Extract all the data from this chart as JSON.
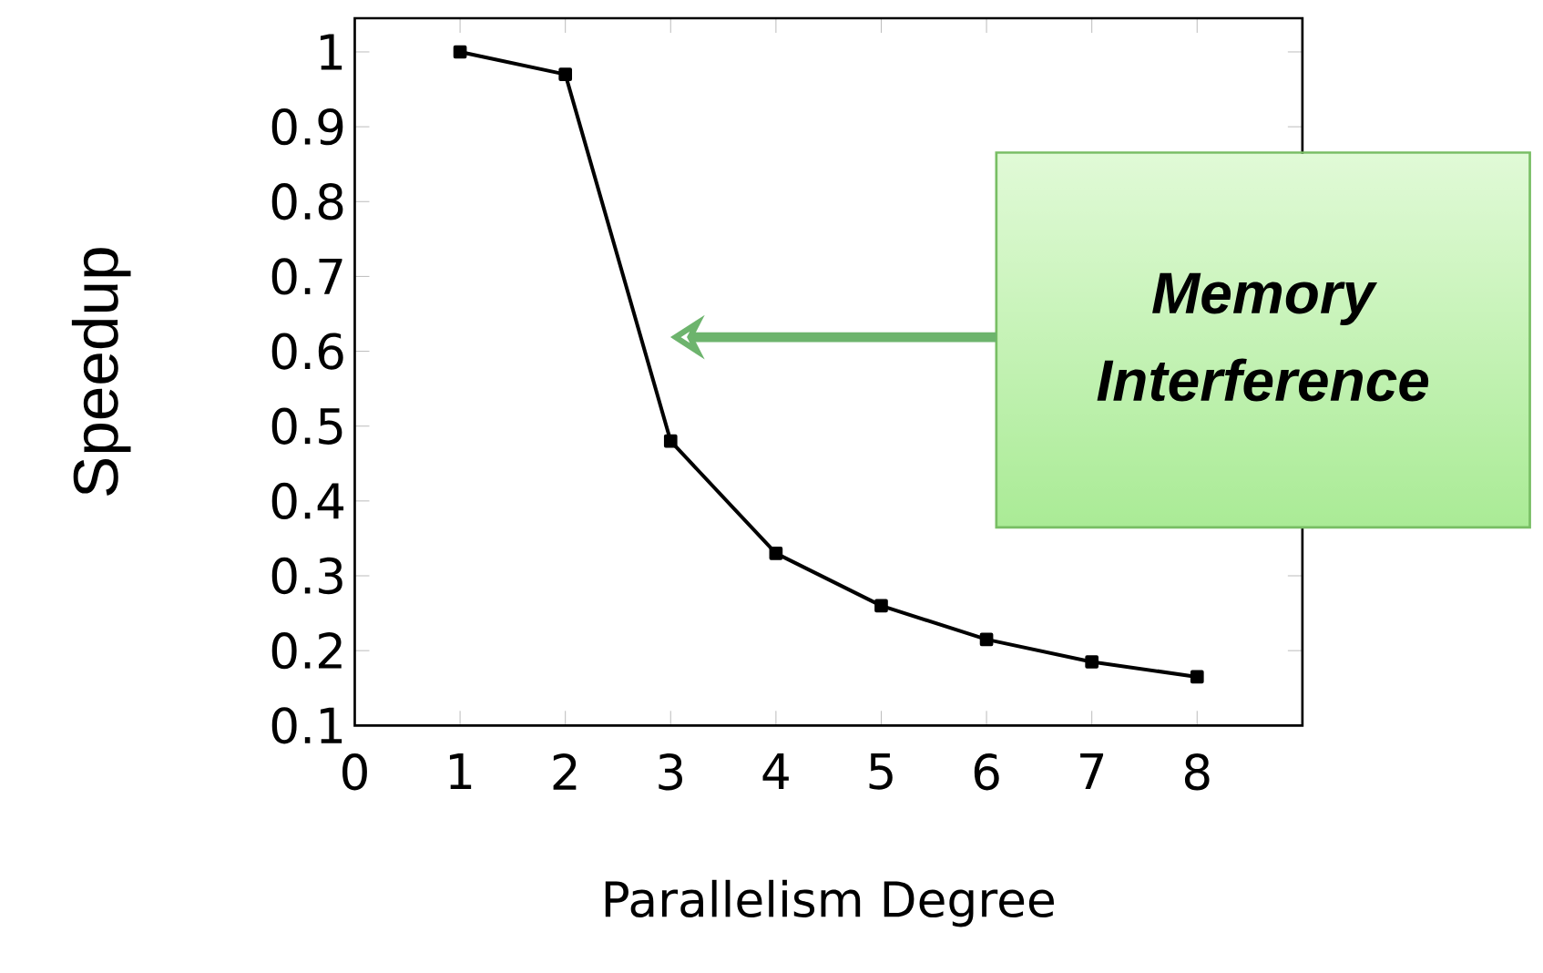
{
  "chart_data": {
    "type": "line",
    "xlabel": "Parallelism Degree",
    "ylabel": "Speedup",
    "x": [
      1,
      2,
      3,
      4,
      5,
      6,
      7,
      8
    ],
    "series": [
      {
        "color": "#000000",
        "values": [
          1.0,
          0.97,
          0.48,
          0.33,
          0.26,
          0.215,
          0.185,
          0.165
        ]
      }
    ],
    "xlim": [
      0,
      9
    ],
    "xticks": [
      0,
      1,
      2,
      3,
      4,
      5,
      6,
      7,
      8
    ],
    "ylim": [
      0.1,
      1.045
    ],
    "yticks": [
      0.1,
      0.2,
      0.3,
      0.4,
      0.5,
      0.6,
      0.7,
      0.8,
      0.9,
      1
    ],
    "marker": "square",
    "line_style": "solid",
    "grid": false,
    "annotations": [
      "Memory Interference"
    ]
  }
}
